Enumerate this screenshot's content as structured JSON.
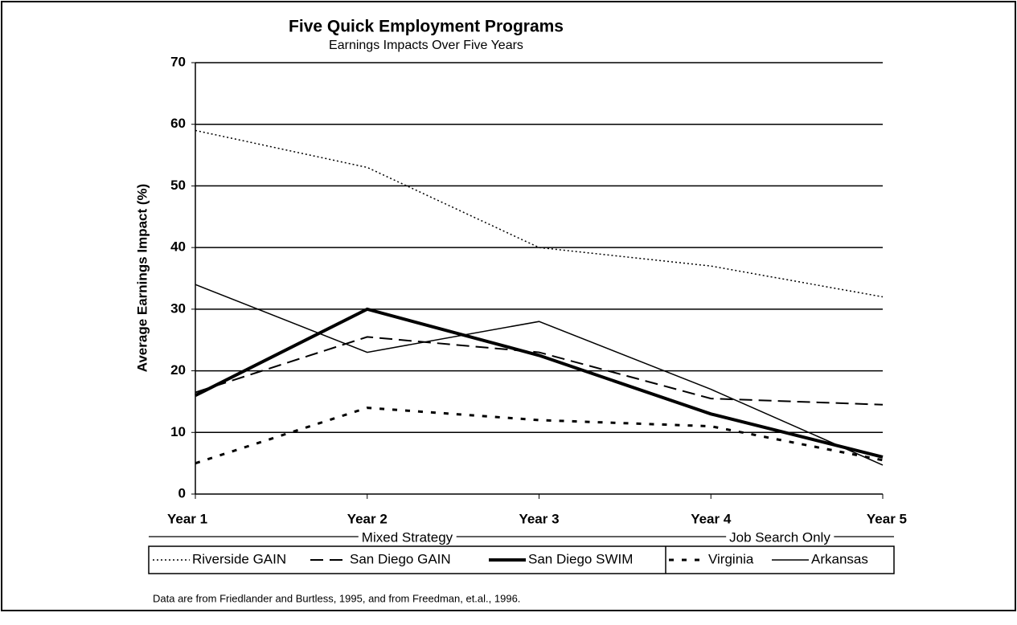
{
  "chart_data": {
    "type": "line",
    "title": "Five Quick Employment Programs",
    "subtitle": "Earnings Impacts Over Five Years",
    "y_label": "Average Earnings Impact (%)",
    "categories": [
      "Year 1",
      "Year 2",
      "Year 3",
      "Year 4",
      "Year 5"
    ],
    "ylim": [
      0,
      70
    ],
    "yticks": [
      0,
      10,
      20,
      30,
      40,
      50,
      60,
      70
    ],
    "grid": true,
    "legend_groups": [
      "Mixed Strategy",
      "Job Search Only"
    ],
    "series": [
      {
        "name": "Riverside GAIN",
        "color": "#000000",
        "style": "dotted",
        "values": [
          59,
          53,
          40,
          37,
          32
        ]
      },
      {
        "name": "San Diego GAIN",
        "color": "#000000",
        "style": "dashed",
        "values": [
          16.5,
          25.5,
          23,
          15.5,
          14.5
        ]
      },
      {
        "name": "San Diego SWIM",
        "color": "#000000",
        "style": "bold",
        "values": [
          16,
          30,
          22.5,
          13,
          6
        ]
      },
      {
        "name": "Virginia",
        "color": "#000000",
        "style": "short-dashed",
        "values": [
          5,
          14,
          12,
          11,
          5.5
        ]
      },
      {
        "name": "Arkansas",
        "color": "#000000",
        "style": "solid",
        "values": [
          34,
          23,
          28,
          17,
          4.7
        ]
      }
    ],
    "note": "Data are from Friedlander and Burtless, 1995, and from Freedman, et.al., 1996."
  }
}
